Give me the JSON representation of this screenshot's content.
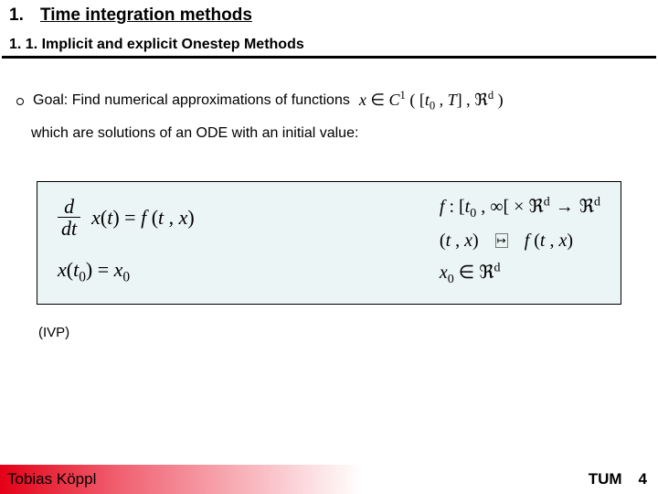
{
  "header": {
    "number": "1.",
    "title": "Time integration methods",
    "subtitle": "1. 1.  Implicit and explicit Onestep Methods"
  },
  "content": {
    "goal_prefix": "Goal: Find numerical approximations of functions",
    "goal_math": "x ∈ C¹ ( [t₀ , T] , ℜᵈ )",
    "goal_line2": "which are solutions of an ODE with an initial value:"
  },
  "equations": {
    "left1_frac_num": "d",
    "left1_frac_den": "dt",
    "left1_rest": "x(t) = f (t , x)",
    "left2": "x(t₀) = x₀",
    "right1": "f : [t₀ , ∞[ × ℜᵈ → ℜᵈ",
    "right2_l": "(t , x)",
    "right2_r": "f (t , x)",
    "right3": "x₀ ∈ ℜᵈ"
  },
  "ivp": "(IVP)",
  "footer": {
    "author": "Tobias Köppl",
    "org": "TUM",
    "page": "4"
  },
  "colors": {
    "eq_box_bg": "#ecf5f5",
    "footer_red": "#e30016"
  }
}
